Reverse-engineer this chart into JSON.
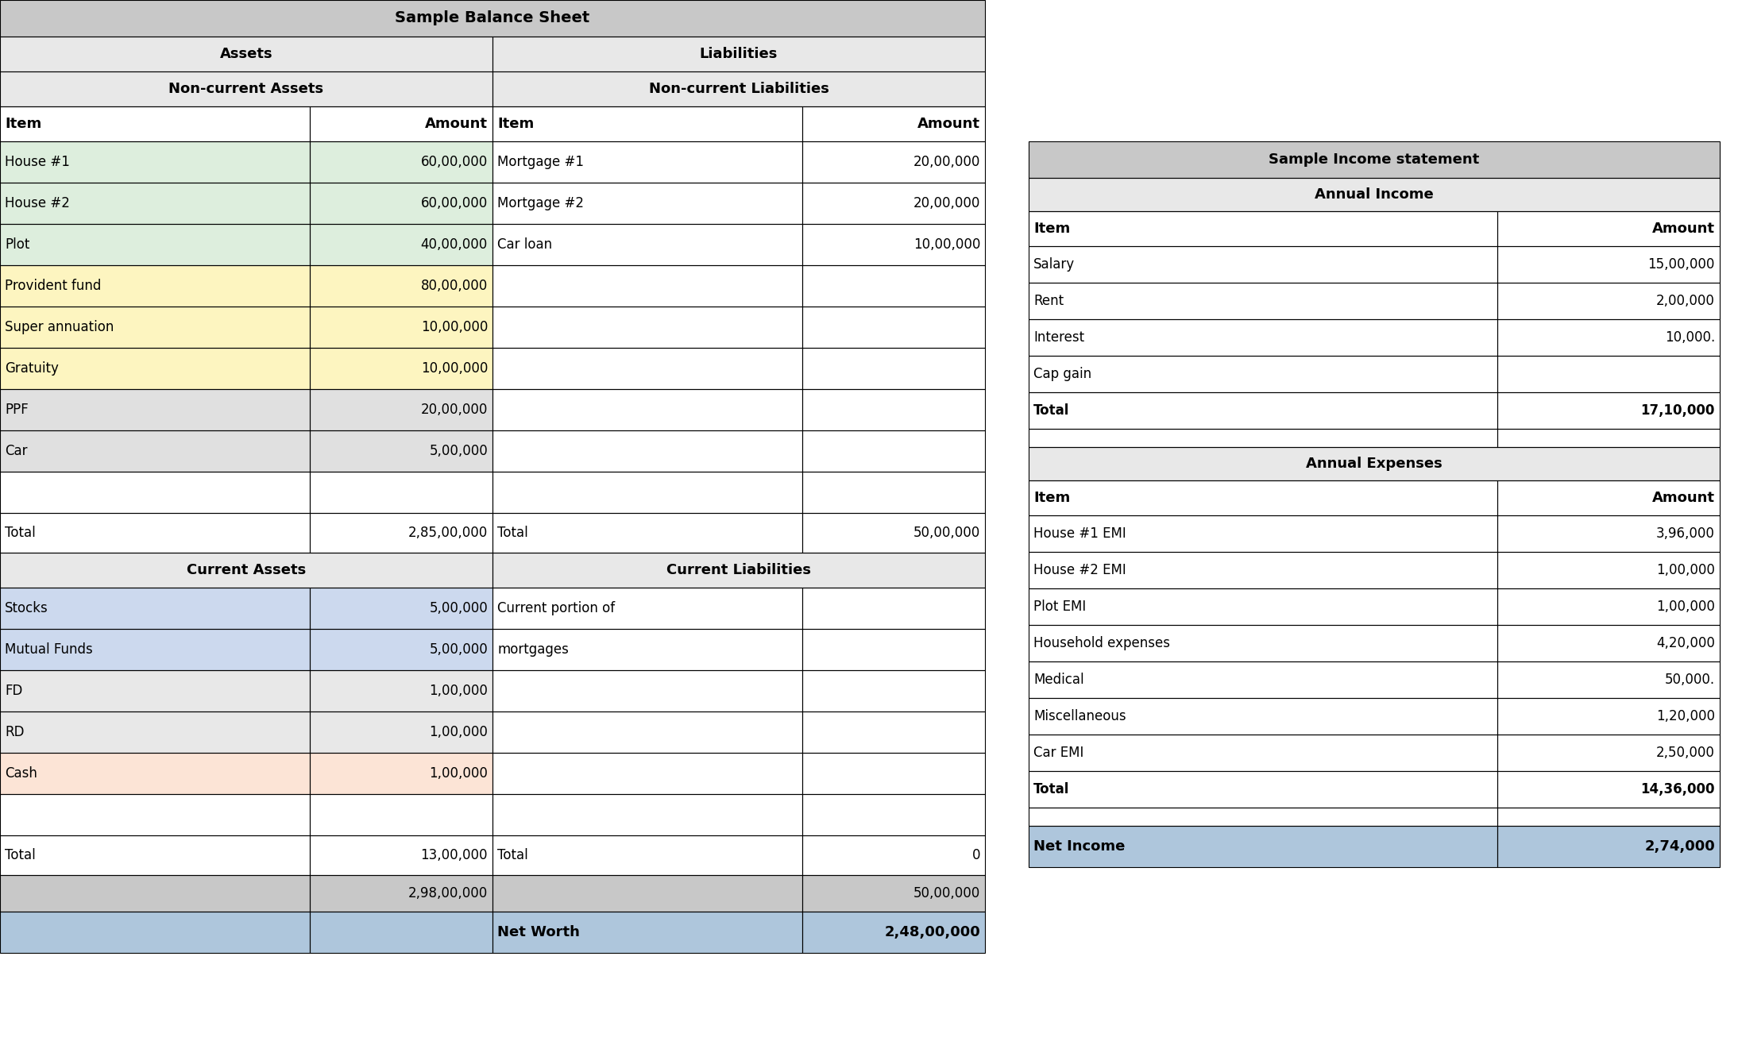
{
  "title": "Sample Balance Sheet",
  "income_title": "Sample Income statement",
  "header_bg": "#c8c8c8",
  "subheader_bg": "#e8e8e8",
  "green_bg": "#ddeedd",
  "yellow_bg": "#fdf5c0",
  "blue_bg": "#ccd9ee",
  "pink_bg": "#fce4d6",
  "gray_bg": "#e0e0e0",
  "white_bg": "#ffffff",
  "networth_bg": "#aec6dc",
  "grand_total_bg": "#c8c8c8",
  "bs_nc_rows": [
    {
      "item": "House #1",
      "amount": "60,00,000",
      "liab_item": "Mortgage #1",
      "liab_amount": "20,00,000",
      "color": "#ddeedd"
    },
    {
      "item": "House #2",
      "amount": "60,00,000",
      "liab_item": "Mortgage #2",
      "liab_amount": "20,00,000",
      "color": "#ddeedd"
    },
    {
      "item": "Plot",
      "amount": "40,00,000",
      "liab_item": "Car loan",
      "liab_amount": "10,00,000",
      "color": "#ddeedd"
    },
    {
      "item": "Provident fund",
      "amount": "80,00,000",
      "liab_item": "",
      "liab_amount": "",
      "color": "#fdf5c0"
    },
    {
      "item": "Super annuation",
      "amount": "10,00,000",
      "liab_item": "",
      "liab_amount": "",
      "color": "#fdf5c0"
    },
    {
      "item": "Gratuity",
      "amount": "10,00,000",
      "liab_item": "",
      "liab_amount": "",
      "color": "#fdf5c0"
    },
    {
      "item": "PPF",
      "amount": "20,00,000",
      "liab_item": "",
      "liab_amount": "",
      "color": "#e0e0e0"
    },
    {
      "item": "Car",
      "amount": "5,00,000",
      "liab_item": "",
      "liab_amount": "",
      "color": "#e0e0e0"
    },
    {
      "item": "",
      "amount": "",
      "liab_item": "",
      "liab_amount": "",
      "color": "#ffffff"
    }
  ],
  "bs_nc_total_assets": "2,85,00,000",
  "bs_nc_total_liab": "50,00,000",
  "bs_ca_rows": [
    {
      "item": "Stocks",
      "amount": "5,00,000",
      "liab_item": "Current portion of",
      "liab_amount": "",
      "color": "#ccd9ee"
    },
    {
      "item": "Mutual Funds",
      "amount": "5,00,000",
      "liab_item": "mortgages",
      "liab_amount": "",
      "color": "#ccd9ee"
    },
    {
      "item": "FD",
      "amount": "1,00,000",
      "liab_item": "",
      "liab_amount": "",
      "color": "#e8e8e8"
    },
    {
      "item": "RD",
      "amount": "1,00,000",
      "liab_item": "",
      "liab_amount": "",
      "color": "#e8e8e8"
    },
    {
      "item": "Cash",
      "amount": "1,00,000",
      "liab_item": "",
      "liab_amount": "",
      "color": "#fce4d6"
    },
    {
      "item": "",
      "amount": "",
      "liab_item": "",
      "liab_amount": "",
      "color": "#ffffff"
    }
  ],
  "bs_ca_total_assets": "13,00,000",
  "bs_ca_total_liab": "0",
  "bs_grand_total_assets": "2,98,00,000",
  "bs_grand_total_liab": "50,00,000",
  "net_worth_label": "Net Worth",
  "net_worth_value": "2,48,00,000",
  "inc_income_rows": [
    {
      "item": "Salary",
      "amount": "15,00,000",
      "is_total": false
    },
    {
      "item": "Rent",
      "amount": "2,00,000",
      "is_total": false
    },
    {
      "item": "Interest",
      "amount": "10,000.",
      "is_total": false
    },
    {
      "item": "Cap gain",
      "amount": "",
      "is_total": false
    },
    {
      "item": "Total",
      "amount": "17,10,000",
      "is_total": true
    }
  ],
  "inc_expense_rows": [
    {
      "item": "House #1 EMI",
      "amount": "3,96,000",
      "is_total": false
    },
    {
      "item": "House #2 EMI",
      "amount": "1,00,000",
      "is_total": false
    },
    {
      "item": "Plot EMI",
      "amount": "1,00,000",
      "is_total": false
    },
    {
      "item": "Household expenses",
      "amount": "4,20,000",
      "is_total": false
    },
    {
      "item": "Medical",
      "amount": "50,000.",
      "is_total": false
    },
    {
      "item": "Miscellaneous",
      "amount": "1,20,000",
      "is_total": false
    },
    {
      "item": "Car EMI",
      "amount": "2,50,000",
      "is_total": false
    },
    {
      "item": "Total",
      "amount": "14,36,000",
      "is_total": true
    }
  ],
  "net_income_label": "Net Income",
  "net_income_value": "2,74,000"
}
